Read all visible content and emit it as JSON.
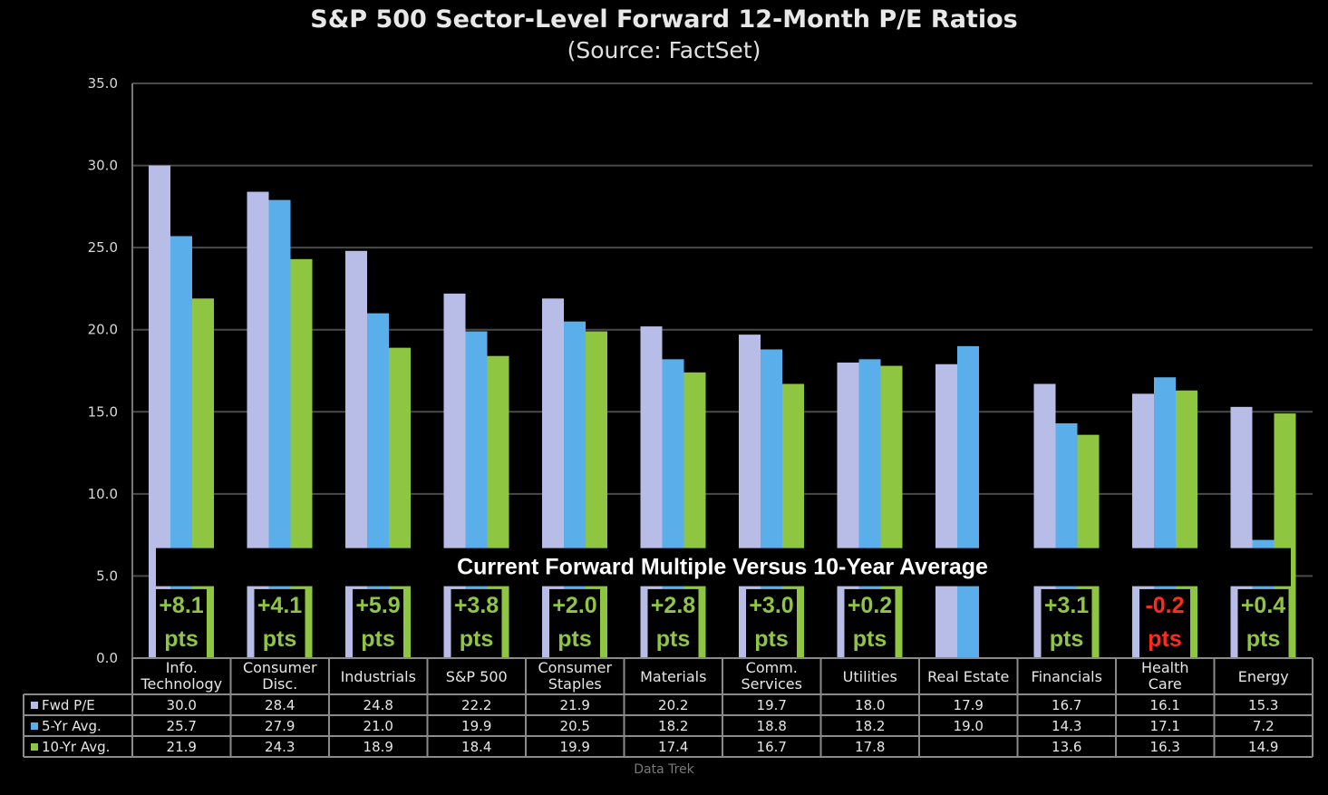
{
  "chart_data": {
    "type": "bar",
    "title": "S&P 500 Sector-Level Forward 12-Month P/E Ratios",
    "subtitle": "(Source: FactSet)",
    "ylim": [
      0,
      35
    ],
    "yticks": [
      "0.0",
      "5.0",
      "10.0",
      "15.0",
      "20.0",
      "25.0",
      "30.0",
      "35.0"
    ],
    "grid": true,
    "categories": [
      [
        "Info.",
        "Technology"
      ],
      [
        "Consumer",
        "Disc."
      ],
      [
        "Industrials"
      ],
      [
        "S&P 500"
      ],
      [
        "Consumer",
        "Staples"
      ],
      [
        "Materials"
      ],
      [
        "Comm.",
        "Services"
      ],
      [
        "Utilities"
      ],
      [
        "Real Estate"
      ],
      [
        "Financials"
      ],
      [
        "Health",
        "Care"
      ],
      [
        "Energy"
      ]
    ],
    "series": [
      {
        "name": "Fwd P/E",
        "color": "#b8bde8",
        "values": [
          30.0,
          28.4,
          24.8,
          22.2,
          21.9,
          20.2,
          19.7,
          18.0,
          17.9,
          16.7,
          16.1,
          15.3
        ],
        "labels": [
          "30.0",
          "28.4",
          "24.8",
          "22.2",
          "21.9",
          "20.2",
          "19.7",
          "18.0",
          "17.9",
          "16.7",
          "16.1",
          "15.3"
        ]
      },
      {
        "name": "5-Yr Avg.",
        "color": "#5aaeea",
        "values": [
          25.7,
          27.9,
          21.0,
          19.9,
          20.5,
          18.2,
          18.8,
          18.2,
          19.0,
          14.3,
          17.1,
          7.2
        ],
        "labels": [
          "25.7",
          "27.9",
          "21.0",
          "19.9",
          "20.5",
          "18.2",
          "18.8",
          "18.2",
          "19.0",
          "14.3",
          "17.1",
          "7.2"
        ]
      },
      {
        "name": "10-Yr Avg.",
        "color": "#8fc641",
        "values": [
          21.9,
          24.3,
          18.9,
          18.4,
          19.9,
          17.4,
          16.7,
          17.8,
          null,
          13.6,
          16.3,
          14.9
        ],
        "labels": [
          "21.9",
          "24.3",
          "18.9",
          "18.4",
          "19.9",
          "17.4",
          "16.7",
          "17.8",
          "",
          "13.6",
          "16.3",
          "14.9"
        ]
      }
    ],
    "annotation": {
      "title": "Current Forward Multiple Versus 10-Year Average",
      "deltas": [
        "+8.1",
        "+4.1",
        "+5.9",
        "+3.8",
        "+2.0",
        "+2.8",
        "+3.0",
        "+0.2",
        null,
        "+3.1",
        "-0.2",
        "+0.4"
      ],
      "unit": "pts",
      "positive_color": "#8fc641",
      "negative_color": "#ff2a1a"
    }
  },
  "footer": "Data Trek"
}
